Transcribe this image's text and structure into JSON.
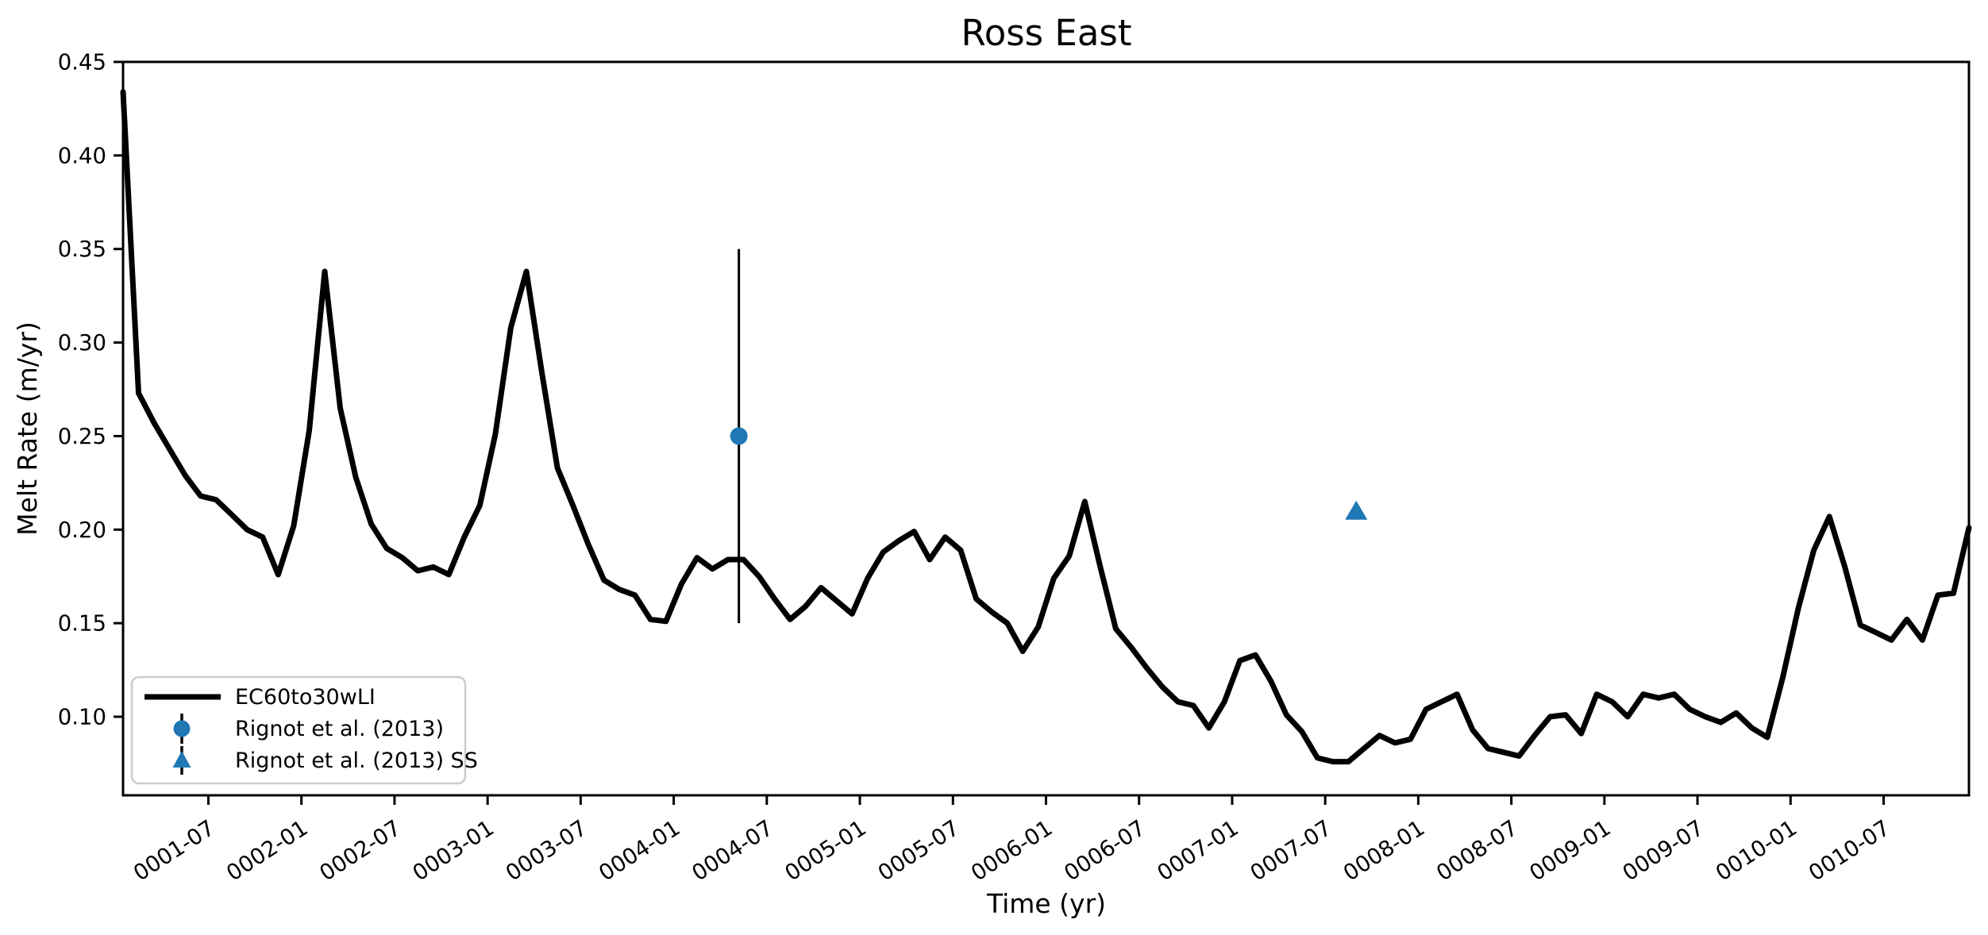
{
  "chart_data": {
    "type": "line",
    "title": "Ross East",
    "xlabel": "Time (yr)",
    "ylabel": "Melt Rate (m/yr)",
    "x_start_label": "0001-01",
    "x_months": 120,
    "ylim": [
      0.058,
      0.45
    ],
    "yticks": [
      "0.10",
      "0.15",
      "0.20",
      "0.25",
      "0.30",
      "0.35",
      "0.40",
      "0.45"
    ],
    "xticks": [
      {
        "label": "0001-07",
        "m": 5.5
      },
      {
        "label": "0002-01",
        "m": 11.5
      },
      {
        "label": "0002-07",
        "m": 17.5
      },
      {
        "label": "0003-01",
        "m": 23.5
      },
      {
        "label": "0003-07",
        "m": 29.5
      },
      {
        "label": "0004-01",
        "m": 35.5
      },
      {
        "label": "0004-07",
        "m": 41.5
      },
      {
        "label": "0005-01",
        "m": 47.5
      },
      {
        "label": "0005-07",
        "m": 53.5
      },
      {
        "label": "0006-01",
        "m": 59.5
      },
      {
        "label": "0006-07",
        "m": 65.5
      },
      {
        "label": "0007-01",
        "m": 71.5
      },
      {
        "label": "0007-07",
        "m": 77.5
      },
      {
        "label": "0008-01",
        "m": 83.5
      },
      {
        "label": "0008-07",
        "m": 89.5
      },
      {
        "label": "0009-01",
        "m": 95.5
      },
      {
        "label": "0009-07",
        "m": 101.5
      },
      {
        "label": "0010-01",
        "m": 107.5
      },
      {
        "label": "0010-07",
        "m": 113.5
      }
    ],
    "series": [
      {
        "name": "EC60to30wLI",
        "color": "#000000",
        "linewidth": 7,
        "values": [
          0.434,
          0.273,
          0.257,
          0.243,
          0.229,
          0.218,
          0.216,
          0.208,
          0.2,
          0.196,
          0.176,
          0.202,
          0.253,
          0.338,
          0.265,
          0.228,
          0.203,
          0.19,
          0.185,
          0.178,
          0.18,
          0.176,
          0.196,
          0.213,
          0.251,
          0.308,
          0.338,
          0.284,
          0.233,
          0.213,
          0.192,
          0.173,
          0.168,
          0.165,
          0.152,
          0.151,
          0.171,
          0.185,
          0.179,
          0.184,
          0.184,
          0.175,
          0.163,
          0.152,
          0.159,
          0.169,
          0.162,
          0.155,
          0.174,
          0.188,
          0.194,
          0.199,
          0.184,
          0.196,
          0.189,
          0.163,
          0.156,
          0.15,
          0.135,
          0.148,
          0.174,
          0.186,
          0.215,
          0.18,
          0.147,
          0.137,
          0.126,
          0.116,
          0.108,
          0.106,
          0.094,
          0.108,
          0.13,
          0.133,
          0.119,
          0.101,
          0.092,
          0.078,
          0.076,
          0.076,
          0.083,
          0.09,
          0.086,
          0.088,
          0.104,
          0.108,
          0.112,
          0.093,
          0.083,
          0.081,
          0.079,
          0.09,
          0.1,
          0.101,
          0.091,
          0.112,
          0.108,
          0.1,
          0.112,
          0.11,
          0.112,
          0.104,
          0.1,
          0.097,
          0.102,
          0.094,
          0.089,
          0.121,
          0.158,
          0.189,
          0.207,
          0.18,
          0.149,
          0.145,
          0.141,
          0.152,
          0.141,
          0.165,
          0.166,
          0.201
        ]
      }
    ],
    "ref_points": [
      {
        "name": "Rignot et al. (2013)",
        "marker": "circle",
        "color": "#1f77b4",
        "x_m": 39.7,
        "value": 0.25,
        "err": 0.1
      },
      {
        "name": "Rignot et al. (2013) SS",
        "marker": "triangle",
        "color": "#1f77b4",
        "x_m": 79.5,
        "value": 0.21,
        "err": 0.0
      }
    ],
    "legend_position": "lower left"
  }
}
